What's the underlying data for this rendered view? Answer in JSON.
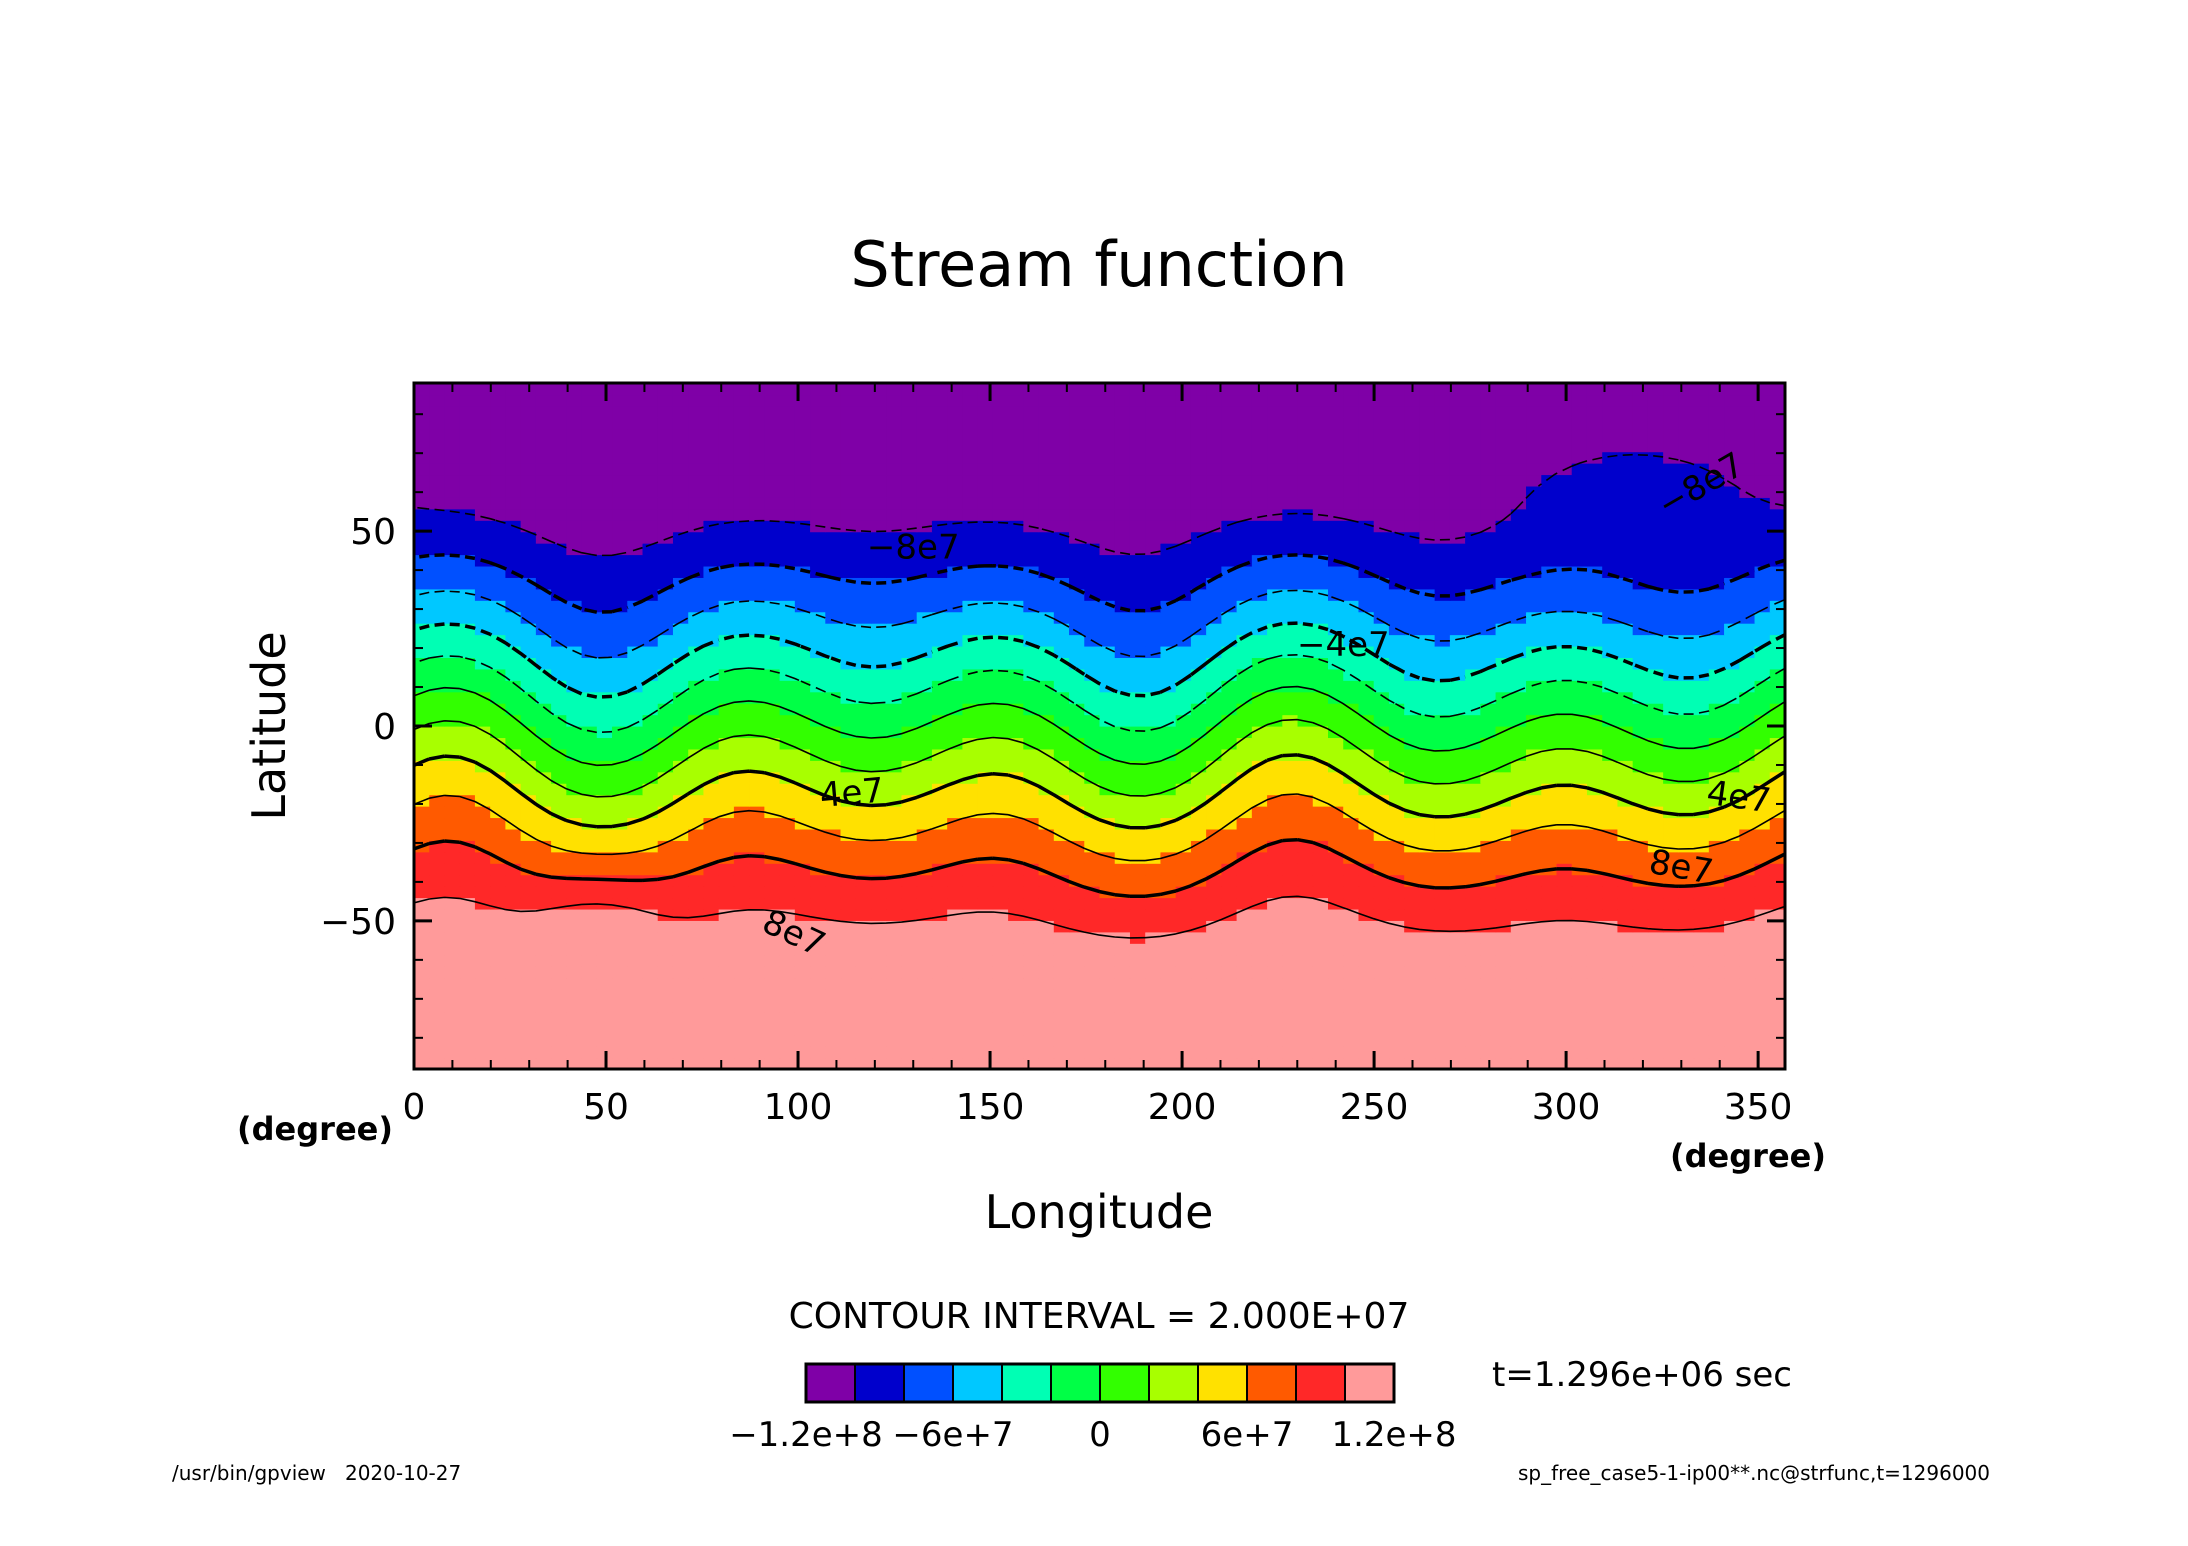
{
  "chart_data": {
    "type": "heatmap",
    "title": "Stream function",
    "xlabel": "Longitude",
    "ylabel": "Latitude",
    "x_unit": "(degree)",
    "y_unit": "(degree)",
    "xlim": [
      0,
      357
    ],
    "ylim": [
      -88,
      88
    ],
    "x_ticks": [
      0,
      50,
      100,
      150,
      200,
      250,
      300,
      350
    ],
    "x_tick_labels": [
      "0",
      "50",
      "100",
      "150",
      "200",
      "250",
      "300",
      "350"
    ],
    "y_ticks": [
      -50,
      0,
      50
    ],
    "y_tick_labels": [
      "−50",
      "0",
      "50"
    ],
    "x_minor_step": 10,
    "y_minor_step": 10,
    "contour_interval_text": "CONTOUR INTERVAL = 2.000E+07",
    "contour_levels": [
      -100000000.0,
      -80000000.0,
      -60000000.0,
      -40000000.0,
      -20000000.0,
      0,
      20000000.0,
      40000000.0,
      60000000.0,
      80000000.0,
      100000000.0
    ],
    "colorbar": {
      "colors": [
        "#7f00a7",
        "#0000cc",
        "#0050ff",
        "#00c8ff",
        "#00ffb4",
        "#00ff46",
        "#32ff00",
        "#a8ff00",
        "#ffe100",
        "#ff5a00",
        "#ff2828",
        "#ff9a9a"
      ],
      "tick_labels": [
        "−1.2e+8",
        "−6e+7",
        "0",
        "6e+7",
        "1.2e+8"
      ],
      "tick_values": [
        -120000000.0,
        -60000000.0,
        0,
        60000000.0,
        120000000.0
      ]
    },
    "contour_labels": [
      {
        "text": "−8e7",
        "lon": 130,
        "lat": 46,
        "angle": 0
      },
      {
        "text": "−8e7",
        "lon": 335,
        "lat": 62,
        "angle": 30
      },
      {
        "text": "−4e7",
        "lon": 242,
        "lat": 21,
        "angle": 0
      },
      {
        "text": "4e7",
        "lon": 114,
        "lat": -17,
        "angle": 5
      },
      {
        "text": "4e7",
        "lon": 345,
        "lat": -18,
        "angle": -8
      },
      {
        "text": "8e7",
        "lon": 99,
        "lat": -53,
        "angle": -25
      },
      {
        "text": "8e7",
        "lon": 330,
        "lat": -36,
        "angle": -10
      }
    ],
    "time_label": "t=1.296e+06 sec"
  },
  "footer": {
    "left": "/usr/bin/gpview   2020-10-27",
    "right": "sp_free_case5-1-ip00**.nc@strfunc,t=1296000"
  }
}
